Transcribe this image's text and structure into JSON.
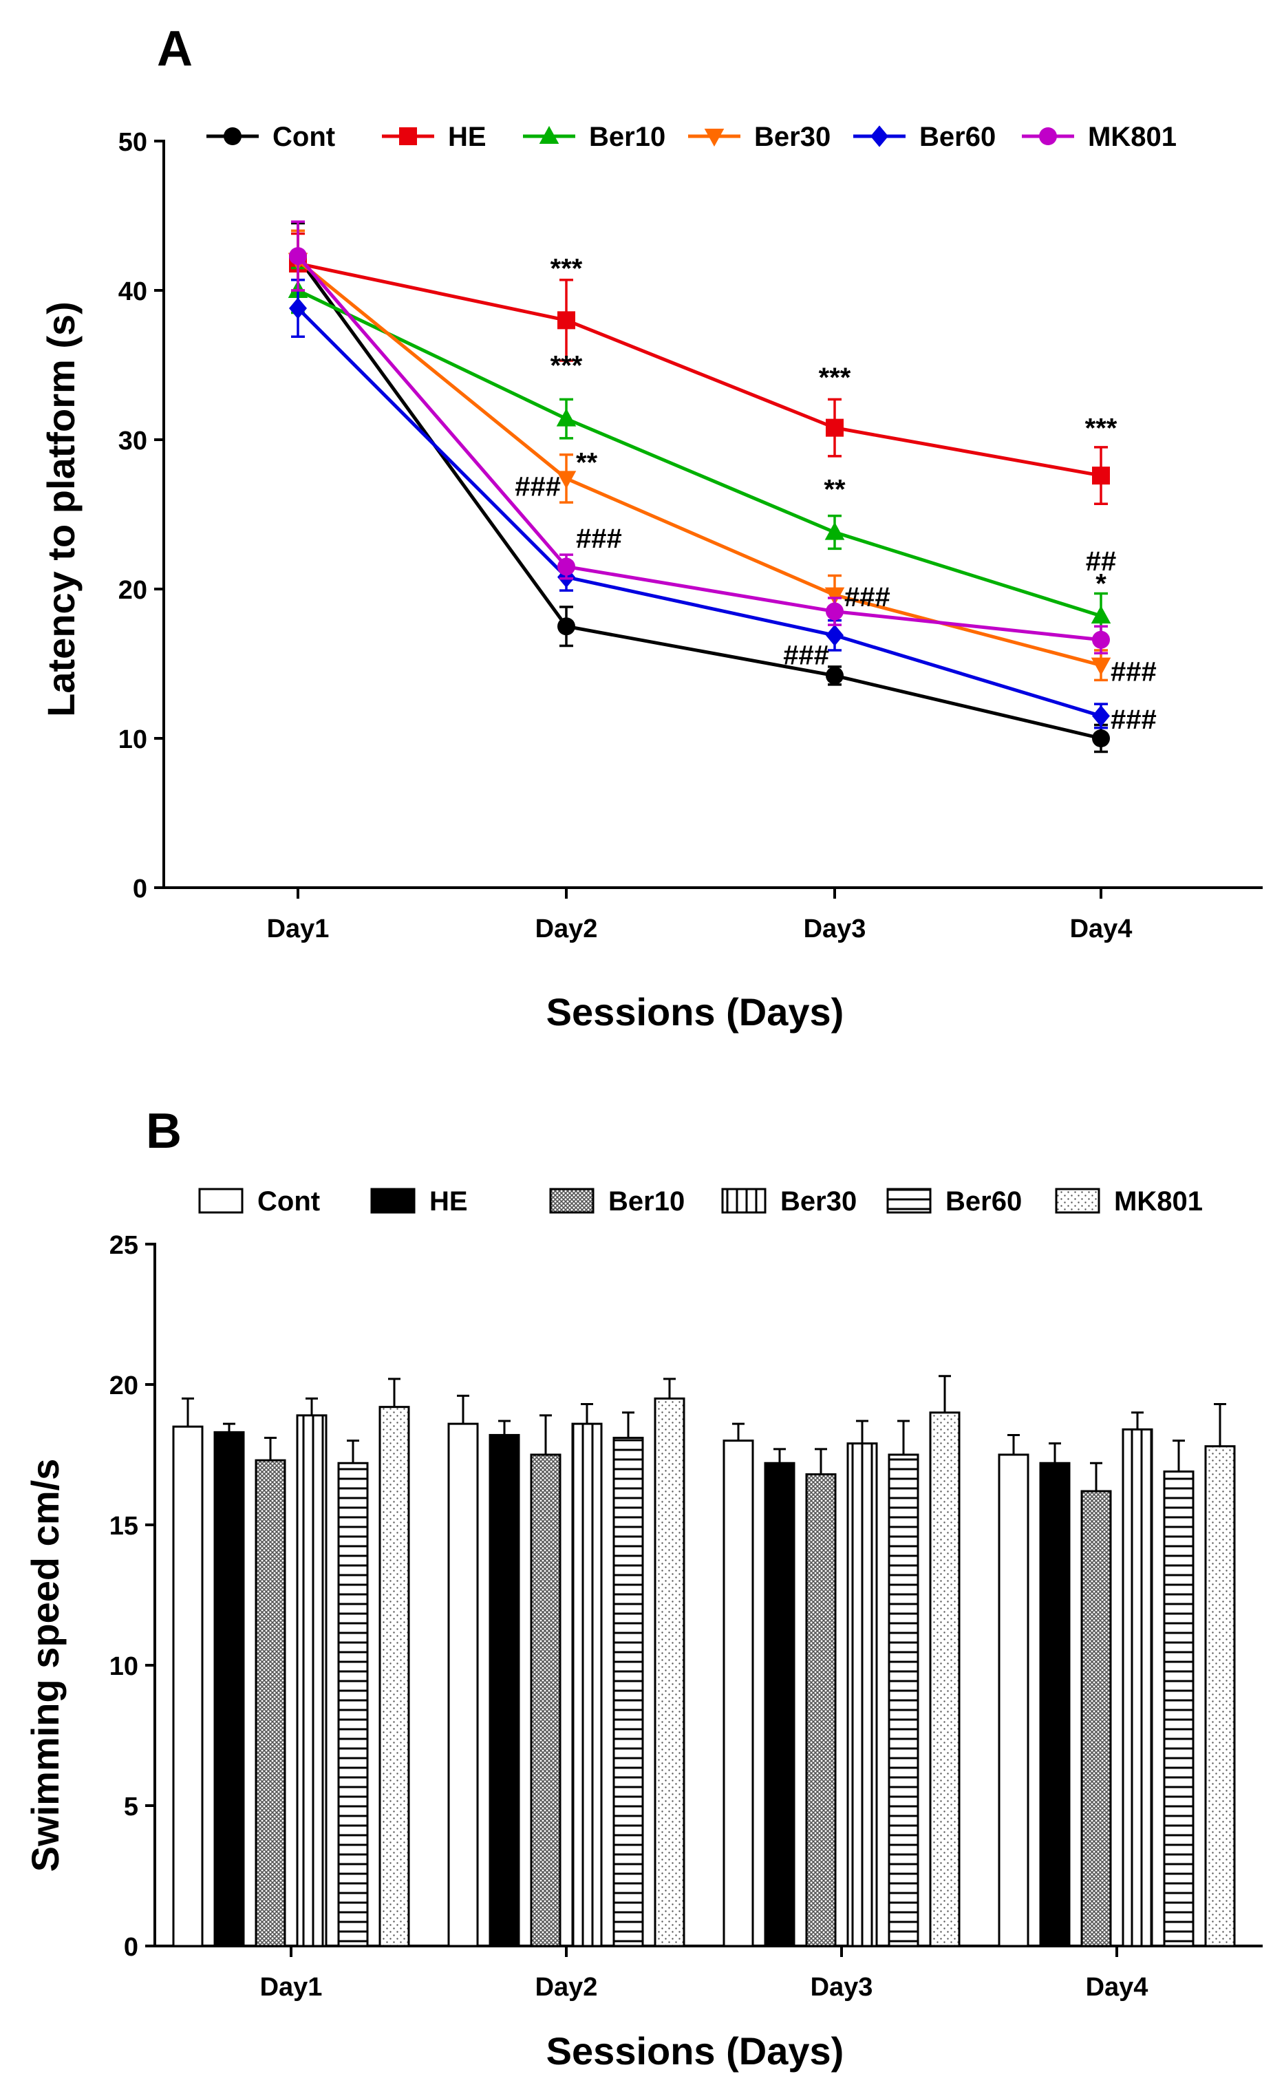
{
  "chart_data": [
    {
      "panel": "A",
      "type": "line",
      "xlabel": "Sessions (Days)",
      "ylabel": "Latency to platform (s)",
      "categories": [
        "Day1",
        "Day2",
        "Day3",
        "Day4"
      ],
      "ylim": [
        0,
        50
      ],
      "yticks": [
        0,
        10,
        20,
        30,
        40,
        50
      ],
      "legend_position": "top",
      "series": [
        {
          "name": "Cont",
          "color": "#000000",
          "marker": "circle",
          "values": [
            42.2,
            17.5,
            14.2,
            10.0
          ],
          "errors": [
            2.3,
            1.3,
            0.6,
            0.9
          ]
        },
        {
          "name": "HE",
          "color": "#e8000b",
          "marker": "square",
          "values": [
            41.8,
            38.0,
            30.8,
            27.6
          ],
          "errors": [
            2.0,
            2.7,
            1.9,
            1.9
          ]
        },
        {
          "name": "Ber10",
          "color": "#00b000",
          "marker": "triangle",
          "values": [
            40.0,
            31.4,
            23.8,
            18.2
          ],
          "errors": [
            1.5,
            1.3,
            1.1,
            1.5
          ]
        },
        {
          "name": "Ber30",
          "color": "#ff6a00",
          "marker": "triangle-down",
          "values": [
            42.0,
            27.4,
            19.6,
            14.9
          ],
          "errors": [
            2.0,
            1.6,
            1.3,
            1.0
          ]
        },
        {
          "name": "Ber60",
          "color": "#0000e0",
          "marker": "diamond",
          "values": [
            38.8,
            20.8,
            16.9,
            11.5
          ],
          "errors": [
            1.9,
            0.9,
            1.0,
            0.8
          ]
        },
        {
          "name": "MK801",
          "color": "#c000c8",
          "marker": "circle",
          "values": [
            42.3,
            21.5,
            18.5,
            16.6
          ],
          "errors": [
            2.3,
            0.8,
            0.9,
            0.9
          ]
        }
      ],
      "annotations": [
        {
          "text": "***",
          "category": "Day2",
          "y": 41.5,
          "align": "center"
        },
        {
          "text": "***",
          "category": "Day2",
          "y": 35.0,
          "align": "center"
        },
        {
          "text": "**",
          "category": "Day2",
          "y": 28.5,
          "align": "right"
        },
        {
          "text": "###",
          "category": "Day2",
          "y": 26.9,
          "align": "left"
        },
        {
          "text": "###",
          "category": "Day2",
          "y": 23.4,
          "align": "right"
        },
        {
          "text": "***",
          "category": "Day3",
          "y": 34.2,
          "align": "center"
        },
        {
          "text": "**",
          "category": "Day3",
          "y": 26.7,
          "align": "center"
        },
        {
          "text": "###",
          "category": "Day3",
          "y": 19.5,
          "align": "right"
        },
        {
          "text": "###",
          "category": "Day3",
          "y": 15.6,
          "align": "left"
        },
        {
          "text": "***",
          "category": "Day4",
          "y": 30.8,
          "align": "center"
        },
        {
          "text": "##",
          "category": "Day4",
          "y": 21.9,
          "align": "center"
        },
        {
          "text": "*",
          "category": "Day4",
          "y": 20.4,
          "align": "center"
        },
        {
          "text": "###",
          "category": "Day4",
          "y": 14.5,
          "align": "right"
        },
        {
          "text": "###",
          "category": "Day4",
          "y": 11.3,
          "align": "right"
        }
      ]
    },
    {
      "panel": "B",
      "type": "bar",
      "xlabel": "Sessions (Days)",
      "ylabel": "Swimming speed cm/s",
      "categories": [
        "Day1",
        "Day2",
        "Day3",
        "Day4"
      ],
      "ylim": [
        0,
        25
      ],
      "yticks": [
        0,
        5,
        10,
        15,
        20,
        25
      ],
      "legend_position": "top",
      "series": [
        {
          "name": "Cont",
          "pattern": "white",
          "values": [
            18.5,
            18.6,
            18.0,
            17.5
          ],
          "errors": [
            1.0,
            1.0,
            0.6,
            0.7
          ]
        },
        {
          "name": "HE",
          "pattern": "black",
          "values": [
            18.3,
            18.2,
            17.2,
            17.2
          ],
          "errors": [
            0.3,
            0.5,
            0.5,
            0.7
          ]
        },
        {
          "name": "Ber10",
          "pattern": "crosshatch",
          "values": [
            17.3,
            17.5,
            16.8,
            16.2
          ],
          "errors": [
            0.8,
            1.4,
            0.9,
            1.0
          ]
        },
        {
          "name": "Ber30",
          "pattern": "vertical",
          "values": [
            18.9,
            18.6,
            17.9,
            18.4
          ],
          "errors": [
            0.6,
            0.7,
            0.8,
            0.6
          ]
        },
        {
          "name": "Ber60",
          "pattern": "horizontal",
          "values": [
            17.2,
            18.1,
            17.5,
            16.9
          ],
          "errors": [
            0.8,
            0.9,
            1.2,
            1.1
          ]
        },
        {
          "name": "MK801",
          "pattern": "dots",
          "values": [
            19.2,
            19.5,
            19.0,
            17.8
          ],
          "errors": [
            1.0,
            0.7,
            1.3,
            1.5
          ]
        }
      ]
    }
  ]
}
